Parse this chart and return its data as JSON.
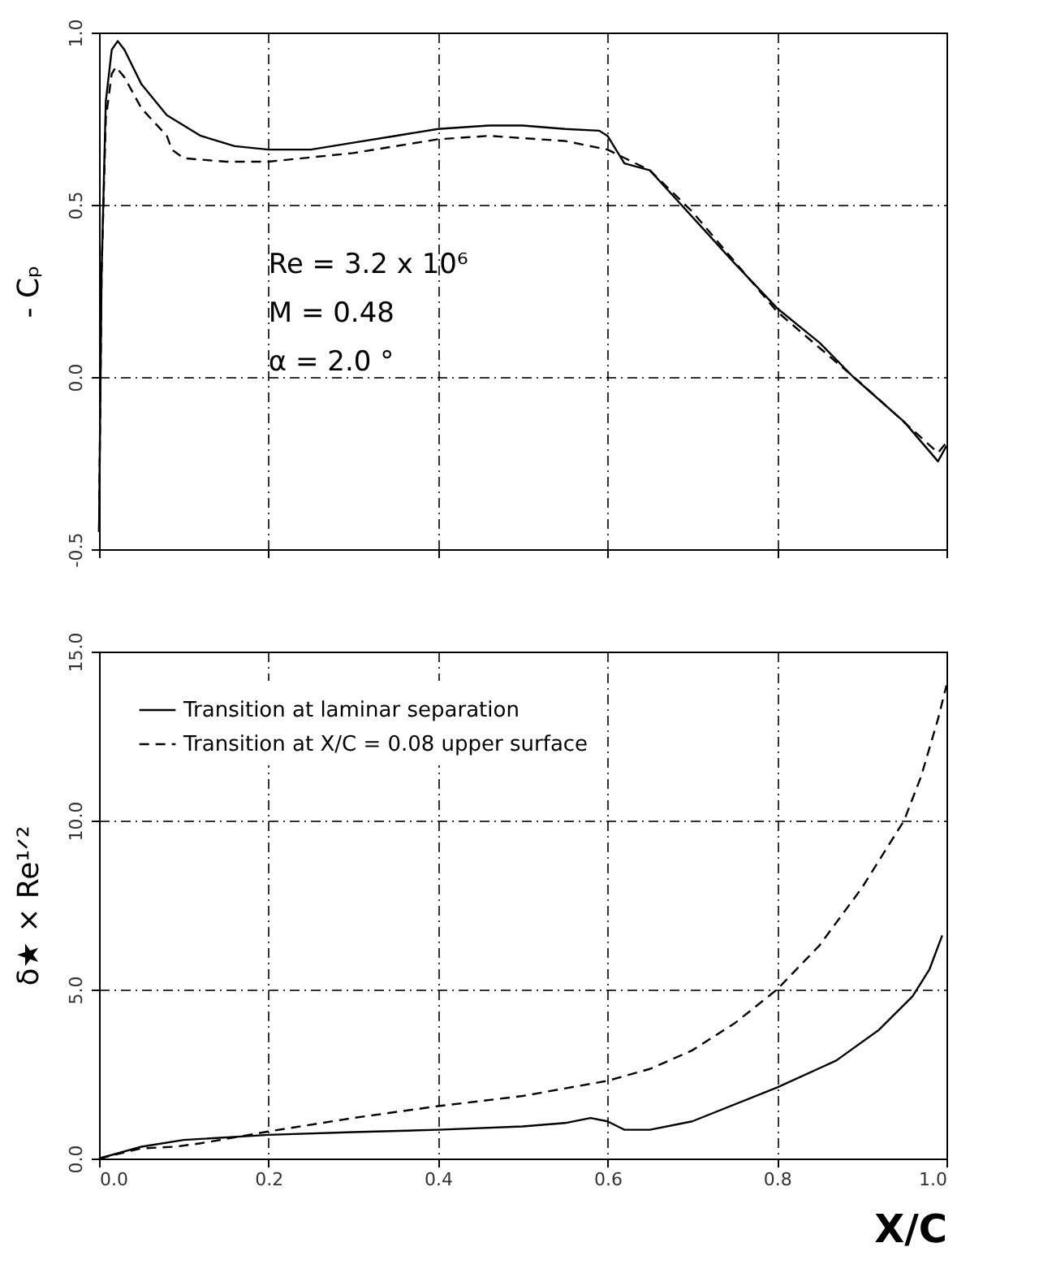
{
  "chart_data": [
    {
      "type": "line",
      "ylabel": "- Cₚ",
      "xlim": [
        0,
        1
      ],
      "ylim": [
        -0.5,
        1.0
      ],
      "xticks": [
        0,
        0.2,
        0.4,
        0.6,
        0.8,
        1.0
      ],
      "yticks": [
        {
          "value": -0.5,
          "label": "-0.5"
        },
        {
          "value": 0,
          "label": "0.0"
        },
        {
          "value": 0.5,
          "label": "0.5"
        },
        {
          "value": 1,
          "label": "1.0"
        }
      ],
      "tick_labels": "y",
      "grid": true,
      "legend": false,
      "annotations": [
        "Re = 3.2 x 10⁶",
        "M = 0.48",
        "α = 2.0 °"
      ],
      "series": [
        {
          "color": "#000000",
          "line_style": "solid",
          "x": [
            0.0,
            0.003,
            0.008,
            0.015,
            0.022,
            0.03,
            0.05,
            0.08,
            0.12,
            0.16,
            0.2,
            0.25,
            0.3,
            0.35,
            0.4,
            0.46,
            0.5,
            0.55,
            0.59,
            0.6,
            0.61,
            0.62,
            0.65,
            0.687,
            0.75,
            0.8,
            0.85,
            0.89,
            0.95,
            0.99,
            1.0
          ],
          "values": [
            -0.45,
            0.3,
            0.8,
            0.95,
            0.975,
            0.95,
            0.85,
            0.76,
            0.7,
            0.67,
            0.66,
            0.66,
            0.68,
            0.7,
            0.72,
            0.73,
            0.73,
            0.72,
            0.715,
            0.7,
            0.66,
            0.62,
            0.6,
            0.5,
            0.33,
            0.2,
            0.1,
            0.0,
            -0.13,
            -0.245,
            -0.2
          ]
        },
        {
          "color": "#000000",
          "line_style": "dashed",
          "x": [
            0.0,
            0.003,
            0.008,
            0.015,
            0.02,
            0.03,
            0.05,
            0.08,
            0.086,
            0.1,
            0.15,
            0.2,
            0.3,
            0.4,
            0.46,
            0.55,
            0.6,
            0.65,
            0.7,
            0.8,
            0.9,
            0.99,
            1.0
          ],
          "values": [
            -0.45,
            0.3,
            0.75,
            0.88,
            0.9,
            0.87,
            0.78,
            0.7,
            0.66,
            0.635,
            0.625,
            0.625,
            0.65,
            0.69,
            0.7,
            0.685,
            0.66,
            0.6,
            0.48,
            0.19,
            -0.02,
            -0.22,
            -0.19
          ]
        }
      ]
    },
    {
      "type": "line",
      "ylabel": "δ★ × Re¹ᐟ²",
      "xlabel": "X/C",
      "xlim": [
        0,
        1
      ],
      "ylim": [
        0,
        15
      ],
      "xticks": [
        {
          "value": 0,
          "label": "0.0"
        },
        0.2,
        0.4,
        0.6,
        0.8,
        {
          "value": 1,
          "label": "1.0"
        }
      ],
      "yticks": [
        {
          "value": 0,
          "label": "0.0"
        },
        {
          "value": 5,
          "label": "5.0"
        },
        {
          "value": 10,
          "label": "10.0"
        },
        {
          "value": 15,
          "label": "15.0"
        }
      ],
      "grid": true,
      "legend": "top left",
      "series": [
        {
          "name": "Transition at laminar separation",
          "color": "#000000",
          "line_style": "solid",
          "x": [
            0.0,
            0.05,
            0.1,
            0.2,
            0.3,
            0.4,
            0.5,
            0.55,
            0.58,
            0.6,
            0.62,
            0.65,
            0.7,
            0.8,
            0.87,
            0.92,
            0.96,
            0.98,
            0.995
          ],
          "values": [
            0.0,
            0.35,
            0.55,
            0.7,
            0.78,
            0.85,
            0.95,
            1.05,
            1.2,
            1.1,
            0.85,
            0.85,
            1.1,
            2.1,
            2.9,
            3.8,
            4.8,
            5.6,
            6.6
          ]
        },
        {
          "name": "Transition at X/C = 0.08 upper surface",
          "color": "#000000",
          "line_style": "dashed",
          "x": [
            0.0,
            0.05,
            0.09,
            0.12,
            0.2,
            0.3,
            0.4,
            0.5,
            0.6,
            0.65,
            0.7,
            0.75,
            0.8,
            0.85,
            0.9,
            0.95,
            0.97,
            0.99,
            1.0
          ],
          "values": [
            0.0,
            0.3,
            0.35,
            0.45,
            0.8,
            1.2,
            1.55,
            1.85,
            2.3,
            2.65,
            3.2,
            4.0,
            5.0,
            6.3,
            8.0,
            10.0,
            11.3,
            13.0,
            14.0
          ]
        }
      ]
    }
  ]
}
